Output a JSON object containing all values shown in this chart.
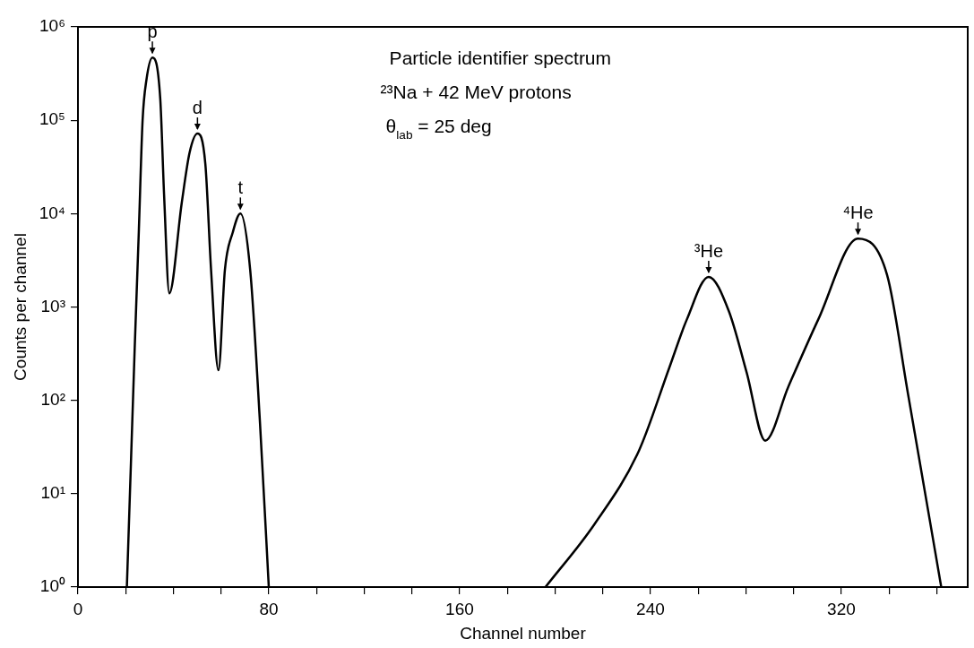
{
  "chart_data": {
    "type": "line",
    "title": "Particle identifier spectrum",
    "subtitle": "²³Na + 42 MeV protons",
    "xlabel": "Channel number",
    "ylabel": "Counts per channel",
    "annotations": [
      "θ$_{lab}$ = 25 deg",
      {
        "text": "p",
        "x": 31.2,
        "y": 470000
      },
      {
        "text": "d",
        "x": 50.1,
        "y": 72000
      },
      {
        "text": "t",
        "x": 68.1,
        "y": 10000
      },
      {
        "text": "³He",
        "x": 264.4,
        "y": 2100
      },
      {
        "text": "⁴He",
        "x": 327,
        "y": 5400
      }
    ],
    "series": [
      {
        "color": "#000000",
        "x": [
          20.5,
          22.2,
          23.8,
          25.5,
          27.1,
          28.7,
          31.2,
          34.5,
          36.1,
          38.3,
          43.5,
          46.8,
          50.1,
          53.4,
          55.8,
          58.9,
          61.6,
          64.9,
          68.1,
          72.2,
          76.3,
          80
        ],
        "values": [
          1,
          21,
          370,
          6300,
          100000,
          270000,
          470000,
          170000,
          16000,
          1400,
          13000,
          45000,
          72000,
          34000,
          2500,
          210,
          2500,
          6300,
          10000,
          2500,
          58,
          1
        ]
      },
      {
        "color": "#000000",
        "x": [
          196,
          216.5,
          235.2,
          247.8,
          255.3,
          264.4,
          272.8,
          280.3,
          288.1,
          297.8,
          310.4,
          327,
          339.2,
          347.9,
          361.9
        ],
        "values": [
          1,
          4.7,
          29,
          220,
          740,
          2100,
          910,
          200,
          37,
          140,
          740,
          5400,
          2200,
          120,
          1
        ]
      }
    ],
    "xlim": [
      0,
      373
    ],
    "xticks": [
      0,
      {
        "value": 20,
        "label": null
      },
      {
        "value": 40,
        "label": null
      },
      {
        "value": 60,
        "label": null
      },
      80,
      {
        "value": 100,
        "label": null
      },
      {
        "value": 120,
        "label": null
      },
      {
        "value": 140,
        "label": null
      },
      160,
      {
        "value": 180,
        "label": null
      },
      {
        "value": 200,
        "label": null
      },
      {
        "value": 220,
        "label": null
      },
      240,
      {
        "value": 260,
        "label": null
      },
      {
        "value": 280,
        "label": null
      },
      {
        "value": 300,
        "label": null
      },
      320,
      {
        "value": 340,
        "label": null
      },
      {
        "value": 360,
        "label": null
      }
    ],
    "ylim": [
      1,
      1000000
    ],
    "yticks": [
      {
        "value": 1,
        "label": "10⁰"
      },
      {
        "value": 10,
        "label": "10¹"
      },
      {
        "value": 100,
        "label": "10²"
      },
      {
        "value": 1000,
        "label": "10³"
      },
      {
        "value": 10000,
        "label": "10⁴"
      },
      {
        "value": 100000,
        "label": "10⁵"
      },
      {
        "value": 1000000,
        "label": "10⁶"
      }
    ],
    "log": "y",
    "grid": false,
    "legend": false,
    "marker": "none",
    "line_style": "solid"
  }
}
